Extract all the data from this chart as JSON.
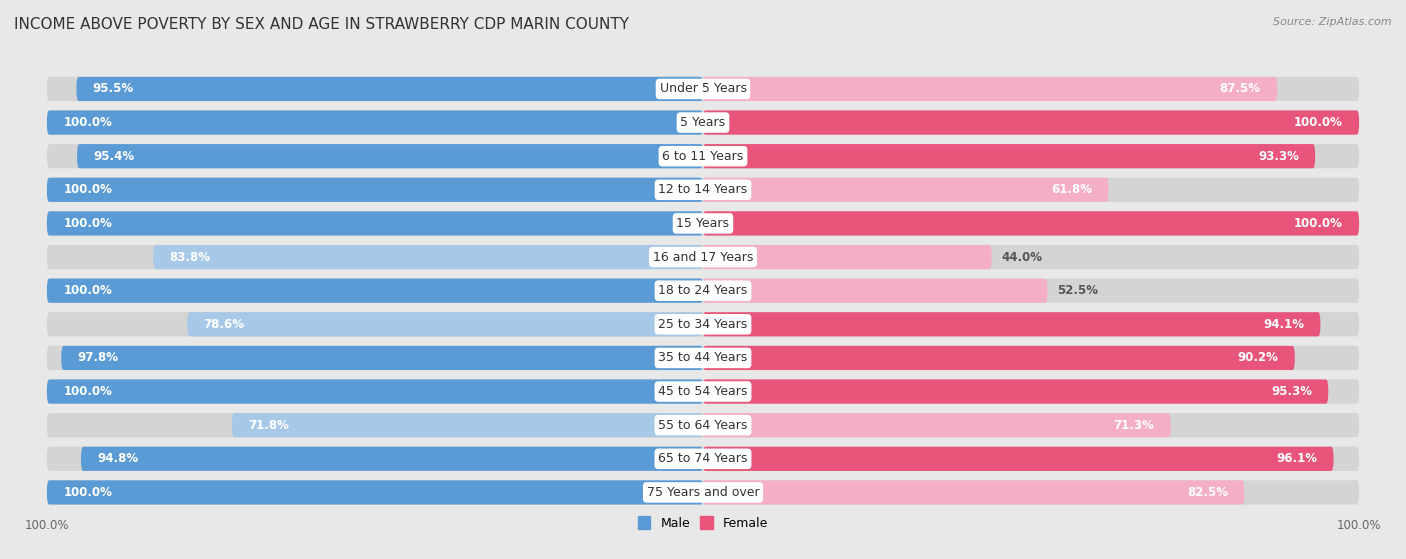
{
  "title": "INCOME ABOVE POVERTY BY SEX AND AGE IN STRAWBERRY CDP MARIN COUNTY",
  "source": "Source: ZipAtlas.com",
  "categories": [
    "Under 5 Years",
    "5 Years",
    "6 to 11 Years",
    "12 to 14 Years",
    "15 Years",
    "16 and 17 Years",
    "18 to 24 Years",
    "25 to 34 Years",
    "35 to 44 Years",
    "45 to 54 Years",
    "55 to 64 Years",
    "65 to 74 Years",
    "75 Years and over"
  ],
  "male_values": [
    95.5,
    100.0,
    95.4,
    100.0,
    100.0,
    83.8,
    100.0,
    78.6,
    97.8,
    100.0,
    71.8,
    94.8,
    100.0
  ],
  "female_values": [
    87.5,
    100.0,
    93.3,
    61.8,
    100.0,
    44.0,
    52.5,
    94.1,
    90.2,
    95.3,
    71.3,
    96.1,
    82.5
  ],
  "male_color_high": "#5b9bd5",
  "male_color_low": "#a8c8e8",
  "female_color_high": "#e8547a",
  "female_color_low": "#f4afc4",
  "male_label": "Male",
  "female_label": "Female",
  "background_color": "#e8e8e8",
  "row_bg_color": "#d8d8d8",
  "title_fontsize": 11,
  "label_fontsize": 8.5,
  "tick_fontsize": 8.5,
  "source_fontsize": 8,
  "cat_label_fontsize": 9
}
